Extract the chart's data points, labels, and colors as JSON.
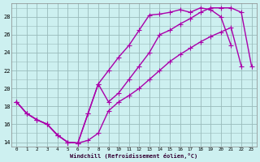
{
  "xlabel": "Windchill (Refroidissement éolien,°C)",
  "bg_color": "#cdf0f0",
  "line_color": "#aa00aa",
  "grid_color": "#99bbbb",
  "xlim": [
    -0.5,
    23.5
  ],
  "ylim": [
    13.5,
    29.5
  ],
  "xticks": [
    0,
    1,
    2,
    3,
    4,
    5,
    6,
    7,
    8,
    9,
    10,
    11,
    12,
    13,
    14,
    15,
    16,
    17,
    18,
    19,
    20,
    21,
    22,
    23
  ],
  "yticks": [
    14,
    16,
    18,
    20,
    22,
    24,
    26,
    28
  ],
  "line1_y": [
    18.5,
    17.2,
    16.5,
    16.0,
    14.8,
    14.0,
    13.9,
    14.2,
    15.0,
    17.5,
    18.5,
    19.2,
    20.0,
    21.0,
    22.0,
    23.0,
    23.8,
    24.5,
    25.2,
    25.8,
    26.3,
    26.8,
    22.5,
    null
  ],
  "line2_y": [
    18.5,
    17.2,
    16.5,
    16.0,
    14.8,
    14.0,
    13.9,
    17.2,
    20.5,
    22.0,
    23.5,
    24.8,
    26.5,
    28.2,
    28.3,
    28.5,
    28.8,
    28.5,
    29.0,
    28.8,
    28.0,
    24.8,
    null,
    null
  ],
  "line3_y": [
    18.5,
    17.2,
    16.5,
    16.0,
    14.8,
    14.0,
    13.9,
    17.2,
    20.5,
    18.5,
    19.5,
    21.0,
    22.5,
    24.0,
    26.0,
    26.5,
    27.2,
    27.8,
    28.5,
    29.0,
    29.0,
    29.0,
    28.5,
    22.5
  ],
  "marker": "+",
  "markersize": 4,
  "linewidth": 1.0
}
